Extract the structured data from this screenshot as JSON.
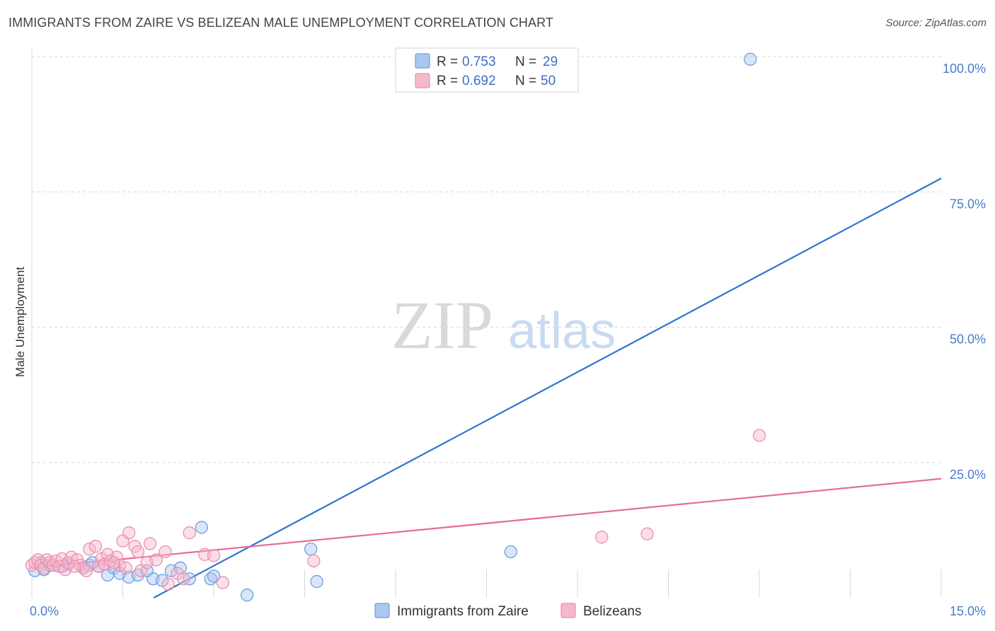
{
  "title": "IMMIGRANTS FROM ZAIRE VS BELIZEAN MALE UNEMPLOYMENT CORRELATION CHART",
  "source": "Source: ZipAtlas.com",
  "watermark": {
    "zip": "ZIP",
    "atlas": "atlas"
  },
  "colors": {
    "blue_fill": "#a9c7ef",
    "blue_stroke": "#6f9fe0",
    "blue_line": "#2f74cf",
    "pink_fill": "#f6b8cb",
    "pink_stroke": "#ec8fae",
    "pink_line": "#e46a98",
    "grid": "#d8d8d8",
    "tick": "#4a7cc7"
  },
  "legend": {
    "r_label": "R =",
    "n_label": "N =",
    "entries": [
      {
        "r": "0.753",
        "n": "29"
      },
      {
        "r": "0.692",
        "n": "50"
      }
    ]
  },
  "chart_data": {
    "type": "scatter",
    "title": "IMMIGRANTS FROM ZAIRE VS BELIZEAN MALE UNEMPLOYMENT CORRELATION CHART",
    "xlabel": "",
    "ylabel": "Male Unemployment",
    "xlim": [
      0,
      15
    ],
    "ylim": [
      0,
      100
    ],
    "x_tick_labels": [
      "0.0%",
      "15.0%"
    ],
    "y_ticks": [
      25,
      50,
      75,
      100
    ],
    "y_tick_labels": [
      "25.0%",
      "50.0%",
      "75.0%",
      "100.0%"
    ],
    "grid": true,
    "legend_position": "top-center",
    "series": [
      {
        "name": "Immigrants from Zaire",
        "r": 0.753,
        "n": 29,
        "trendline": {
          "x": [
            0,
            15
          ],
          "y": [
            -12.0,
            77.5
          ]
        },
        "points": [
          {
            "x": 0.05,
            "y": 5.0
          },
          {
            "x": 0.15,
            "y": 6.5
          },
          {
            "x": 0.2,
            "y": 5.2
          },
          {
            "x": 0.3,
            "y": 6.0
          },
          {
            "x": 0.5,
            "y": 5.8
          },
          {
            "x": 0.6,
            "y": 6.2
          },
          {
            "x": 0.85,
            "y": 5.5
          },
          {
            "x": 0.95,
            "y": 6.0
          },
          {
            "x": 1.1,
            "y": 5.8
          },
          {
            "x": 1.25,
            "y": 4.2
          },
          {
            "x": 1.35,
            "y": 5.5
          },
          {
            "x": 1.45,
            "y": 4.5
          },
          {
            "x": 1.6,
            "y": 3.8
          },
          {
            "x": 1.75,
            "y": 4.2
          },
          {
            "x": 1.9,
            "y": 5.0
          },
          {
            "x": 2.0,
            "y": 3.5
          },
          {
            "x": 2.15,
            "y": 3.2
          },
          {
            "x": 2.3,
            "y": 5.0
          },
          {
            "x": 2.45,
            "y": 5.5
          },
          {
            "x": 2.6,
            "y": 3.5
          },
          {
            "x": 2.8,
            "y": 13.0
          },
          {
            "x": 2.95,
            "y": 3.5
          },
          {
            "x": 3.0,
            "y": 4.0
          },
          {
            "x": 3.55,
            "y": 0.5
          },
          {
            "x": 4.6,
            "y": 9.0
          },
          {
            "x": 4.7,
            "y": 3.0
          },
          {
            "x": 7.9,
            "y": 8.5
          },
          {
            "x": 11.85,
            "y": 99.5
          },
          {
            "x": 1.0,
            "y": 6.5
          }
        ]
      },
      {
        "name": "Belizeans",
        "r": 0.692,
        "n": 50,
        "trendline": {
          "x": [
            0,
            15
          ],
          "y": [
            5.5,
            22.0
          ]
        },
        "points": [
          {
            "x": 0.0,
            "y": 6.0
          },
          {
            "x": 0.05,
            "y": 6.5
          },
          {
            "x": 0.1,
            "y": 7.0
          },
          {
            "x": 0.15,
            "y": 6.0
          },
          {
            "x": 0.2,
            "y": 5.5
          },
          {
            "x": 0.25,
            "y": 7.0
          },
          {
            "x": 0.3,
            "y": 6.5
          },
          {
            "x": 0.35,
            "y": 6.0
          },
          {
            "x": 0.4,
            "y": 6.8
          },
          {
            "x": 0.45,
            "y": 5.8
          },
          {
            "x": 0.5,
            "y": 7.2
          },
          {
            "x": 0.55,
            "y": 5.2
          },
          {
            "x": 0.6,
            "y": 6.5
          },
          {
            "x": 0.65,
            "y": 7.5
          },
          {
            "x": 0.75,
            "y": 7.0
          },
          {
            "x": 0.8,
            "y": 6.0
          },
          {
            "x": 0.85,
            "y": 5.5
          },
          {
            "x": 0.9,
            "y": 5.0
          },
          {
            "x": 0.95,
            "y": 9.0
          },
          {
            "x": 1.05,
            "y": 9.5
          },
          {
            "x": 1.1,
            "y": 5.8
          },
          {
            "x": 1.15,
            "y": 7.2
          },
          {
            "x": 1.2,
            "y": 6.2
          },
          {
            "x": 1.25,
            "y": 8.0
          },
          {
            "x": 1.3,
            "y": 6.8
          },
          {
            "x": 1.4,
            "y": 7.5
          },
          {
            "x": 1.45,
            "y": 6.0
          },
          {
            "x": 1.5,
            "y": 10.5
          },
          {
            "x": 1.55,
            "y": 5.5
          },
          {
            "x": 1.6,
            "y": 12.0
          },
          {
            "x": 1.7,
            "y": 9.5
          },
          {
            "x": 1.75,
            "y": 8.5
          },
          {
            "x": 1.8,
            "y": 5.0
          },
          {
            "x": 1.9,
            "y": 6.5
          },
          {
            "x": 1.95,
            "y": 10.0
          },
          {
            "x": 2.05,
            "y": 7.0
          },
          {
            "x": 2.2,
            "y": 8.5
          },
          {
            "x": 2.25,
            "y": 2.5
          },
          {
            "x": 2.4,
            "y": 4.5
          },
          {
            "x": 2.5,
            "y": 3.5
          },
          {
            "x": 2.6,
            "y": 12.0
          },
          {
            "x": 2.85,
            "y": 8.0
          },
          {
            "x": 3.0,
            "y": 7.8
          },
          {
            "x": 3.15,
            "y": 2.8
          },
          {
            "x": 4.65,
            "y": 6.8
          },
          {
            "x": 9.4,
            "y": 11.2
          },
          {
            "x": 10.15,
            "y": 11.8
          },
          {
            "x": 12.0,
            "y": 30.0
          },
          {
            "x": 0.7,
            "y": 5.8
          },
          {
            "x": 1.35,
            "y": 6.5
          }
        ]
      }
    ]
  }
}
